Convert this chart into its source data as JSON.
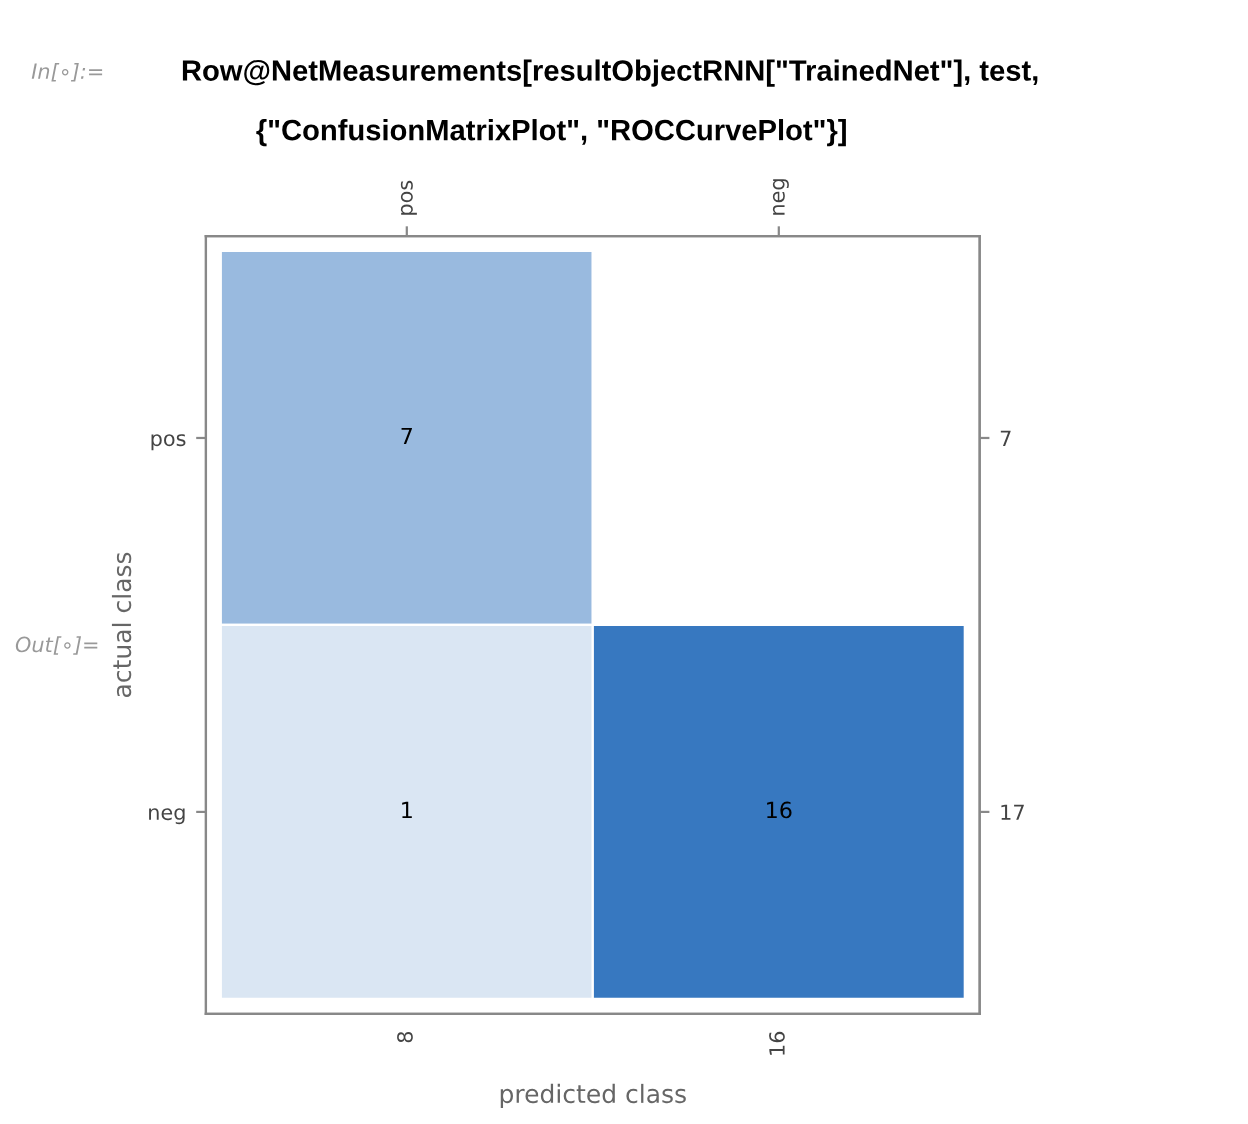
{
  "chart_data": {
    "type": "heatmap",
    "xlabel": "predicted class",
    "ylabel": "actual class",
    "categories": [
      "pos",
      "neg"
    ],
    "y_categories": [
      "pos",
      "neg"
    ],
    "y2_categories": [
      "7",
      "17"
    ],
    "cells": [
      [
        7,
        null
      ],
      [
        1,
        16
      ]
    ],
    "data_labels": true,
    "annotations": [
      "In[∘]:=",
      "Row@NetMeasurements[resultObjectRNN[\"TrainedNet\"], test,",
      "{\"ConfusionMatrixPlot\", \"ROCCurvePlot\"}]",
      "Out[∘]=",
      "8",
      "16"
    ]
  }
}
